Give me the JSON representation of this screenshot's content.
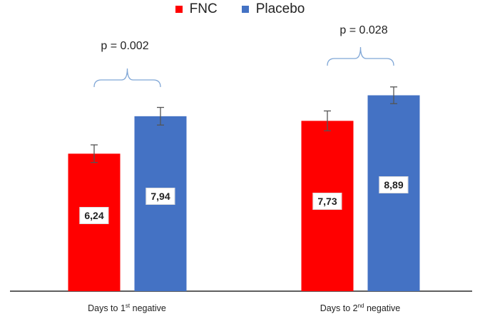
{
  "chart_data": {
    "type": "bar",
    "categories": [
      "Days to 1st negative",
      "Days to 2nd negative"
    ],
    "category_parts": [
      {
        "prefix": "Days to 1",
        "sup": "st",
        "suffix": " negative"
      },
      {
        "prefix": "Days to 2",
        "sup": "nd",
        "suffix": " negative"
      }
    ],
    "series": [
      {
        "name": "FNC",
        "color": "#ff0000",
        "values": [
          6.24,
          7.73
        ],
        "labels": [
          "6,24",
          "7,73"
        ],
        "errors": [
          0.4,
          0.45
        ]
      },
      {
        "name": "Placebo",
        "color": "#4472c4",
        "values": [
          7.94,
          8.89
        ],
        "labels": [
          "7,94",
          "8,89"
        ],
        "errors": [
          0.4,
          0.38
        ]
      }
    ],
    "annotations": [
      "p = 0.002",
      "p = 0.028"
    ],
    "ylim": [
      0,
      10.3
    ],
    "legend": "top-center",
    "grid": false
  }
}
